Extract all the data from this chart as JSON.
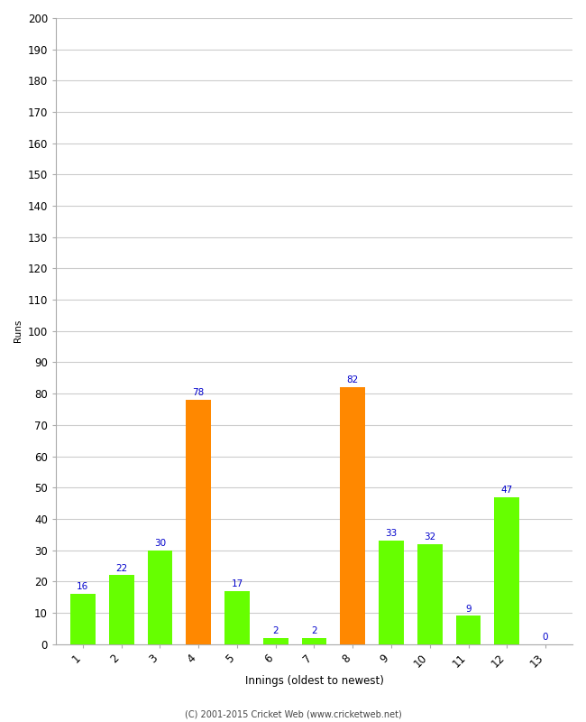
{
  "xlabel": "Innings (oldest to newest)",
  "ylabel": "Runs",
  "categories": [
    "1",
    "2",
    "3",
    "4",
    "5",
    "6",
    "7",
    "8",
    "9",
    "10",
    "11",
    "12",
    "13"
  ],
  "values": [
    16,
    22,
    30,
    78,
    17,
    2,
    2,
    82,
    33,
    32,
    9,
    47,
    0
  ],
  "bar_colors": [
    "#66ff00",
    "#66ff00",
    "#66ff00",
    "#ff8800",
    "#66ff00",
    "#66ff00",
    "#66ff00",
    "#ff8800",
    "#66ff00",
    "#66ff00",
    "#66ff00",
    "#66ff00",
    "#66ff00"
  ],
  "ylim": [
    0,
    200
  ],
  "yticks": [
    0,
    10,
    20,
    30,
    40,
    50,
    60,
    70,
    80,
    90,
    100,
    110,
    120,
    130,
    140,
    150,
    160,
    170,
    180,
    190,
    200
  ],
  "label_color": "#0000cc",
  "footer": "(C) 2001-2015 Cricket Web (www.cricketweb.net)",
  "background_color": "#ffffff",
  "grid_color": "#cccccc",
  "label_fontsize": 7.5,
  "axis_fontsize": 8.5,
  "ylabel_fontsize": 7.5,
  "xlabel_fontsize": 8.5,
  "bar_width": 0.65
}
